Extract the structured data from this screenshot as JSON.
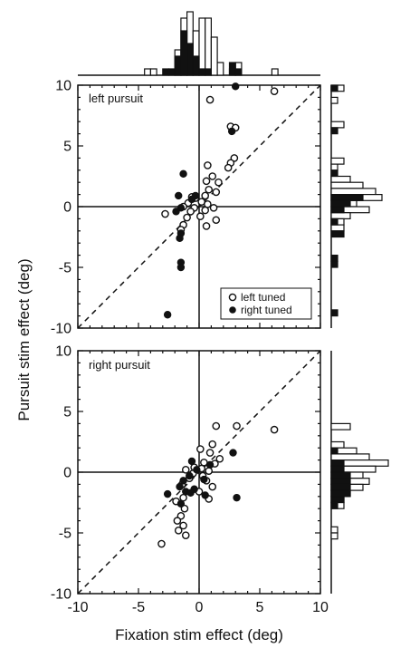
{
  "chart_data": [
    {
      "type": "scatter",
      "panel": "left pursuit",
      "label": "left pursuit",
      "xlim": [
        -10,
        10
      ],
      "ylim": [
        -10,
        10
      ],
      "xticks": [
        "-10",
        "-5",
        "0",
        "5",
        "10"
      ],
      "yticks": [
        "-10",
        "-5",
        "0",
        "5",
        "10"
      ],
      "zero_lines": true,
      "unity_line": true,
      "legend": {
        "placement": "bottom-right",
        "entries": [
          {
            "label": "left tuned",
            "marker": "open-circle"
          },
          {
            "label": "right tuned",
            "marker": "filled-circle"
          }
        ]
      },
      "series": [
        {
          "name": "left tuned",
          "marker": "open-circle",
          "points": [
            [
              0.9,
              8.8
            ],
            [
              6.2,
              9.5
            ],
            [
              2.6,
              6.6
            ],
            [
              3.0,
              6.5
            ],
            [
              2.9,
              4.0
            ],
            [
              2.6,
              3.6
            ],
            [
              2.4,
              3.2
            ],
            [
              0.7,
              3.4
            ],
            [
              1.1,
              2.5
            ],
            [
              1.6,
              2.0
            ],
            [
              0.6,
              2.1
            ],
            [
              0.8,
              1.4
            ],
            [
              1.4,
              1.2
            ],
            [
              0.5,
              0.9
            ],
            [
              -0.6,
              0.8
            ],
            [
              -0.3,
              0.7
            ],
            [
              0.2,
              0.4
            ],
            [
              -0.9,
              0.3
            ],
            [
              0.7,
              0.2
            ],
            [
              -1.3,
              0.0
            ],
            [
              -0.4,
              -0.1
            ],
            [
              1.2,
              -0.1
            ],
            [
              0.5,
              -0.3
            ],
            [
              -0.7,
              -0.4
            ],
            [
              -2.8,
              -0.6
            ],
            [
              0.1,
              -0.8
            ],
            [
              -1.0,
              -0.9
            ],
            [
              1.4,
              -1.1
            ],
            [
              -1.3,
              -1.5
            ],
            [
              0.6,
              -1.6
            ],
            [
              -1.5,
              -1.9
            ]
          ]
        },
        {
          "name": "right tuned",
          "marker": "filled-circle",
          "points": [
            [
              3.0,
              9.9
            ],
            [
              2.7,
              6.2
            ],
            [
              -1.3,
              2.7
            ],
            [
              -1.7,
              0.9
            ],
            [
              -0.3,
              0.9
            ],
            [
              -0.6,
              0.6
            ],
            [
              -1.5,
              -0.1
            ],
            [
              -1.9,
              -0.4
            ],
            [
              -1.5,
              -2.2
            ],
            [
              -1.6,
              -2.6
            ],
            [
              -1.5,
              -4.6
            ],
            [
              -1.5,
              -5.0
            ],
            [
              -2.6,
              -8.9
            ]
          ]
        }
      ]
    },
    {
      "type": "scatter",
      "panel": "right pursuit",
      "label": "right pursuit",
      "xlim": [
        -10,
        10
      ],
      "ylim": [
        -10,
        10
      ],
      "xticks": [
        "-10",
        "-5",
        "0",
        "5",
        "10"
      ],
      "yticks": [
        "-10",
        "-5",
        "0",
        "5",
        "10"
      ],
      "xlabel": "Fixation stim effect (deg)",
      "ylabel": "Pursuit stim effect (deg)",
      "zero_lines": true,
      "unity_line": true,
      "series": [
        {
          "name": "left tuned",
          "marker": "open-circle",
          "points": [
            [
              1.4,
              3.8
            ],
            [
              3.1,
              3.8
            ],
            [
              6.2,
              3.5
            ],
            [
              1.1,
              2.3
            ],
            [
              0.1,
              1.9
            ],
            [
              0.9,
              1.6
            ],
            [
              1.7,
              1.1
            ],
            [
              0.4,
              0.8
            ],
            [
              1.3,
              0.7
            ],
            [
              -0.4,
              0.4
            ],
            [
              0.2,
              0.3
            ],
            [
              -1.1,
              0.2
            ],
            [
              0.8,
              0.1
            ],
            [
              -0.5,
              -0.1
            ],
            [
              0.3,
              -0.3
            ],
            [
              -0.8,
              -0.5
            ],
            [
              0.6,
              -0.7
            ],
            [
              -1.4,
              -1.0
            ],
            [
              1.1,
              -1.2
            ],
            [
              0.0,
              -1.6
            ],
            [
              -1.3,
              -2.1
            ],
            [
              0.8,
              -2.2
            ],
            [
              -1.9,
              -2.4
            ],
            [
              -1.2,
              -3.0
            ],
            [
              -1.5,
              -3.6
            ],
            [
              -1.8,
              -4.0
            ],
            [
              -1.3,
              -4.4
            ],
            [
              -1.7,
              -4.8
            ],
            [
              -1.1,
              -5.2
            ],
            [
              -3.1,
              -5.9
            ]
          ]
        },
        {
          "name": "right tuned",
          "marker": "filled-circle",
          "points": [
            [
              2.8,
              1.6
            ],
            [
              -0.6,
              0.9
            ],
            [
              0.9,
              0.6
            ],
            [
              -0.2,
              0.2
            ],
            [
              -0.8,
              -0.3
            ],
            [
              0.4,
              -0.6
            ],
            [
              -1.3,
              -0.7
            ],
            [
              -1.6,
              -1.2
            ],
            [
              -0.4,
              -1.4
            ],
            [
              -1.1,
              -1.6
            ],
            [
              -0.7,
              -1.7
            ],
            [
              -2.6,
              -1.8
            ],
            [
              0.5,
              -1.9
            ],
            [
              3.1,
              -2.1
            ],
            [
              -1.5,
              -2.6
            ]
          ]
        }
      ]
    },
    {
      "type": "bar",
      "panel": "top marginal histogram (fixation stim effect, both panels combined)",
      "orientation": "vertical",
      "bin_width": 0.5,
      "series": [
        {
          "name": "left tuned",
          "fill": "open",
          "values": [
            [
              -4.5,
              1
            ],
            [
              -4.0,
              1
            ],
            [
              -2.0,
              4
            ],
            [
              -1.5,
              9
            ],
            [
              -1.0,
              10
            ],
            [
              -0.5,
              7
            ],
            [
              0.0,
              9
            ],
            [
              0.5,
              9
            ],
            [
              1.0,
              6
            ],
            [
              1.5,
              2
            ],
            [
              2.5,
              1
            ],
            [
              3.0,
              2
            ],
            [
              6.0,
              1
            ]
          ]
        },
        {
          "name": "right tuned",
          "fill": "filled",
          "values": [
            [
              -3.0,
              1
            ],
            [
              -2.5,
              1
            ],
            [
              -2.0,
              3
            ],
            [
              -1.5,
              7
            ],
            [
              -1.0,
              5
            ],
            [
              -0.5,
              3
            ],
            [
              0.0,
              1
            ],
            [
              0.5,
              1
            ],
            [
              2.5,
              2
            ],
            [
              3.0,
              1
            ]
          ]
        }
      ]
    },
    {
      "type": "bar",
      "panel": "right marginal histogram (pursuit stim effect, left pursuit)",
      "orientation": "horizontal",
      "bin_width": 0.5,
      "series": [
        {
          "name": "left tuned",
          "fill": "open",
          "values": [
            [
              9.5,
              2
            ],
            [
              8.5,
              1
            ],
            [
              6.5,
              2
            ],
            [
              3.5,
              2
            ],
            [
              3.0,
              1
            ],
            [
              2.0,
              3
            ],
            [
              1.5,
              5
            ],
            [
              1.0,
              7
            ],
            [
              0.5,
              8
            ],
            [
              0.0,
              4
            ],
            [
              -0.5,
              6
            ],
            [
              -1.0,
              3
            ],
            [
              -1.5,
              2
            ],
            [
              -2.0,
              2
            ]
          ]
        },
        {
          "name": "right tuned",
          "fill": "filled",
          "values": [
            [
              9.5,
              1
            ],
            [
              6.0,
              1
            ],
            [
              2.5,
              1
            ],
            [
              0.5,
              5
            ],
            [
              0.0,
              3
            ],
            [
              -0.5,
              2
            ],
            [
              -1.5,
              1
            ],
            [
              -2.5,
              2
            ],
            [
              -4.5,
              1
            ],
            [
              -5.0,
              1
            ],
            [
              -9.0,
              1
            ]
          ]
        }
      ]
    },
    {
      "type": "bar",
      "panel": "right marginal histogram (pursuit stim effect, right pursuit)",
      "orientation": "horizontal",
      "bin_width": 0.5,
      "series": [
        {
          "name": "left tuned",
          "fill": "open",
          "values": [
            [
              3.5,
              3
            ],
            [
              2.0,
              2
            ],
            [
              1.5,
              4
            ],
            [
              1.0,
              6
            ],
            [
              0.5,
              9
            ],
            [
              0.0,
              7
            ],
            [
              -0.5,
              5
            ],
            [
              -1.0,
              6
            ],
            [
              -1.5,
              5
            ],
            [
              -2.0,
              3
            ],
            [
              -2.5,
              2
            ],
            [
              -3.0,
              2
            ],
            [
              -5.0,
              1
            ],
            [
              -5.5,
              1
            ]
          ]
        },
        {
          "name": "right tuned",
          "fill": "filled",
          "values": [
            [
              1.5,
              1
            ],
            [
              0.5,
              2
            ],
            [
              0.0,
              2
            ],
            [
              -0.5,
              3
            ],
            [
              -1.0,
              3
            ],
            [
              -1.5,
              3
            ],
            [
              -2.0,
              3
            ],
            [
              -2.5,
              2
            ],
            [
              -3.0,
              1
            ]
          ]
        }
      ]
    }
  ]
}
